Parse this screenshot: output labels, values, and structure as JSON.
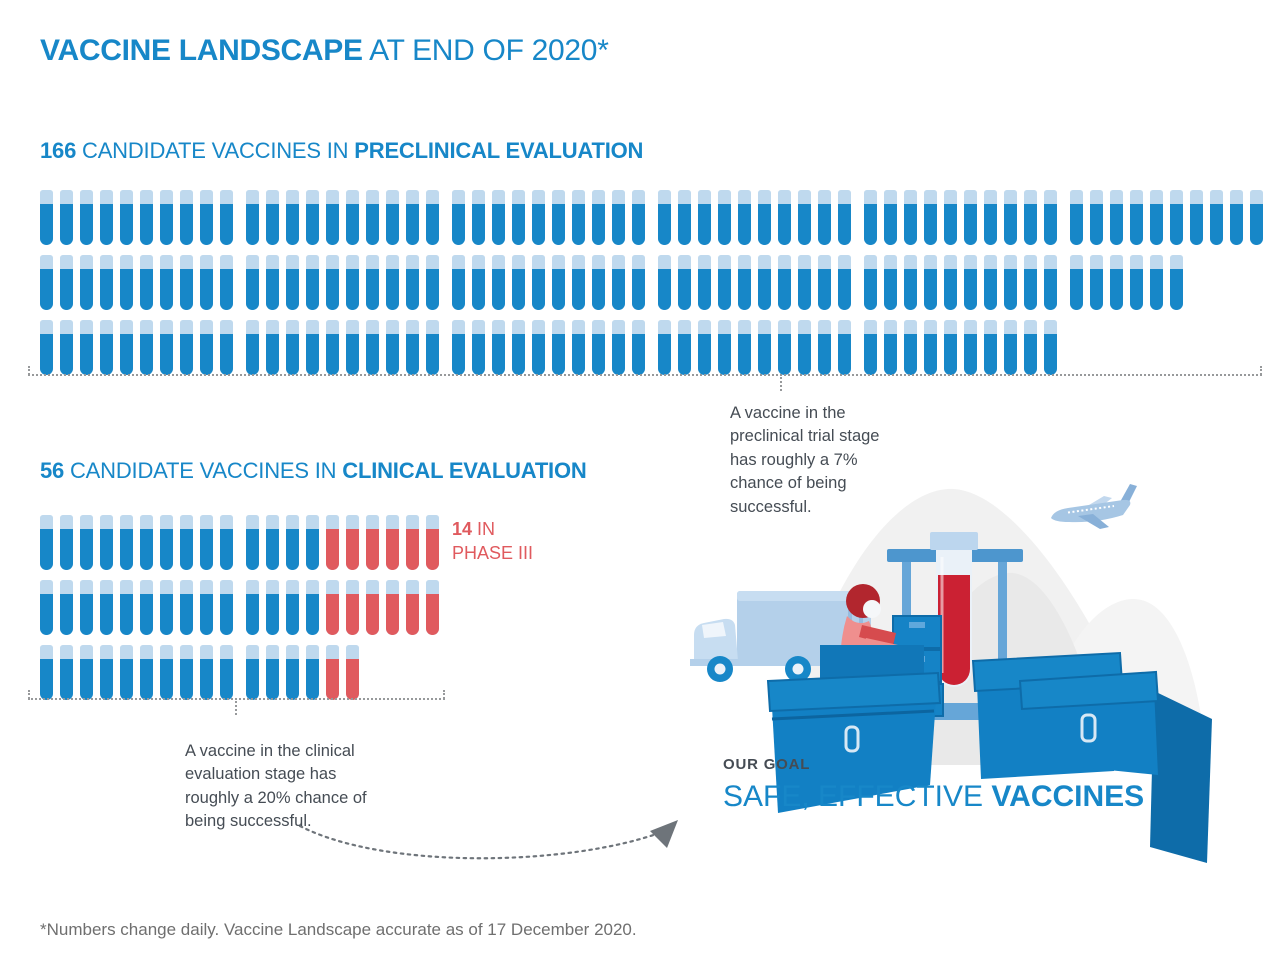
{
  "title": {
    "bold": "VACCINE LANDSCAPE",
    "light": " AT END OF 2020*"
  },
  "colors": {
    "blue": "#1787C8",
    "red": "#E05A5E",
    "tube_lip": "#BFD9EE",
    "deep_red": "#CB2133",
    "text": "#454C54",
    "muted": "#6F6F6F",
    "dotted": "#97999B"
  },
  "preclinical": {
    "count": "166",
    "label": " CANDIDATE VACCINES IN ",
    "label_bold": "PRECLINICAL EVALUATION",
    "rows": [
      [
        [
          10,
          0
        ],
        [
          10,
          0
        ],
        [
          10,
          0
        ],
        [
          10,
          0
        ],
        [
          10,
          0
        ],
        [
          10,
          0
        ]
      ],
      [
        [
          10,
          0
        ],
        [
          10,
          0
        ],
        [
          10,
          0
        ],
        [
          10,
          0
        ],
        [
          10,
          0
        ],
        [
          6,
          0
        ]
      ],
      [
        [
          10,
          0
        ],
        [
          10,
          0
        ],
        [
          10,
          0
        ],
        [
          10,
          0
        ],
        [
          10,
          0
        ]
      ]
    ],
    "note": "A vaccine in the preclinical trial stage has roughly a 7% chance of being successful."
  },
  "clinical": {
    "count": "56",
    "label": " CANDIDATE VACCINES IN ",
    "label_bold": "CLINICAL EVALUATION",
    "rows": [
      [
        [
          10,
          0
        ],
        [
          4,
          6
        ]
      ],
      [
        [
          10,
          0
        ],
        [
          4,
          6
        ]
      ],
      [
        [
          10,
          0
        ],
        [
          4,
          2
        ]
      ]
    ],
    "phase3": {
      "count": "14",
      "rest": " IN",
      "line2": "PHASE III"
    },
    "note": "A vaccine in the clinical evaluation stage has roughly a 20% chance of being successful."
  },
  "goal": {
    "kicker": "OUR GOAL",
    "light": "SAFE, EFFECTIVE ",
    "bold": "VACCINES"
  },
  "footnote": "*Numbers change daily. Vaccine Landscape accurate as of 17 December 2020.",
  "chart_data": {
    "type": "bar",
    "title": "Vaccine Landscape at end of 2020",
    "categories": [
      "Candidate vaccines in preclinical evaluation",
      "Candidate vaccines in clinical evaluation",
      "Candidate vaccines in Phase III (subset of clinical)"
    ],
    "values": [
      166,
      56,
      14
    ],
    "unit": "1 test-tube icon = 1 candidate vaccine",
    "legend": [
      "Blue tube = candidate vaccine",
      "Red tube = Phase III candidate"
    ],
    "notes": [
      "A vaccine in the preclinical trial stage has roughly a 7% chance of being successful.",
      "A vaccine in the clinical evaluation stage has roughly a 20% chance of being successful."
    ],
    "footnote": "*Numbers change daily. Vaccine Landscape accurate as of 17 December 2020."
  }
}
